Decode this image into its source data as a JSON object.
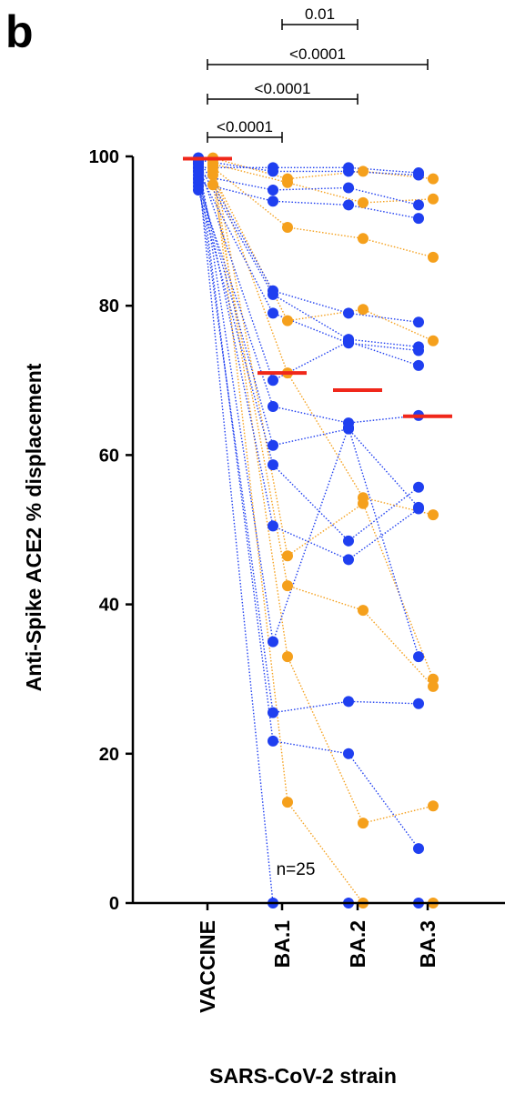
{
  "panel_label": "b",
  "chart_data": {
    "type": "scatter",
    "subtype": "paired-before-after",
    "title": "",
    "xlabel": "SARS-CoV-2 strain",
    "ylabel": "Anti-Spike ACE2 % displacement",
    "categories": [
      "VACCINE",
      "BA.1",
      "BA.2",
      "BA.3"
    ],
    "ylim": [
      0,
      100
    ],
    "yticks": [
      "0",
      "20",
      "40",
      "60",
      "80",
      "100"
    ],
    "grid": false,
    "n_label": "n=25",
    "colors": {
      "blue": "#1f3ff0",
      "orange": "#f5a01c",
      "median": "#f0271a"
    },
    "medians": [
      99.7,
      71.0,
      68.7,
      65.2
    ],
    "comparisons": [
      {
        "from": "VACCINE",
        "to": "BA.1",
        "p": "<0.0001"
      },
      {
        "from": "VACCINE",
        "to": "BA.2",
        "p": "<0.0001"
      },
      {
        "from": "VACCINE",
        "to": "BA.3",
        "p": "<0.0001"
      },
      {
        "from": "BA.1",
        "to": "BA.2",
        "p": "0.01"
      }
    ],
    "series": [
      {
        "group": "blue",
        "values": [
          98.5,
          98.5,
          98.5,
          97.8
        ]
      },
      {
        "group": "blue",
        "values": [
          99.5,
          98.0,
          98.0,
          97.5
        ]
      },
      {
        "group": "blue",
        "values": [
          97.5,
          95.5,
          95.8,
          93.5
        ]
      },
      {
        "group": "blue",
        "values": [
          96.5,
          94.0,
          93.5,
          91.7
        ]
      },
      {
        "group": "blue",
        "values": [
          99.8,
          82.0,
          79.0,
          77.8
        ]
      },
      {
        "group": "blue",
        "values": [
          99.0,
          81.5,
          75.5,
          74.5
        ]
      },
      {
        "group": "blue",
        "values": [
          98.0,
          79.0,
          75.0,
          74.0
        ]
      },
      {
        "group": "blue",
        "values": [
          99.0,
          70.0,
          75.2,
          72.0
        ]
      },
      {
        "group": "blue",
        "values": [
          96.0,
          66.5,
          64.3,
          65.3
        ]
      },
      {
        "group": "blue",
        "values": [
          97.0,
          61.3,
          63.5,
          53.0
        ]
      },
      {
        "group": "blue",
        "values": [
          95.5,
          58.7,
          48.5,
          55.7
        ]
      },
      {
        "group": "blue",
        "values": [
          98.5,
          50.5,
          46.0,
          52.8
        ]
      },
      {
        "group": "blue",
        "values": [
          99.8,
          35.0,
          63.7,
          33.0
        ]
      },
      {
        "group": "blue",
        "values": [
          97.0,
          25.5,
          27.0,
          26.7
        ]
      },
      {
        "group": "blue",
        "values": [
          99.3,
          21.7,
          20.0,
          7.3
        ]
      },
      {
        "group": "blue",
        "values": [
          98.0,
          0.0,
          0.0,
          0.0
        ]
      },
      {
        "group": "orange",
        "values": [
          99.8,
          97.0,
          98.0,
          97.0
        ]
      },
      {
        "group": "orange",
        "values": [
          99.0,
          96.5,
          93.8,
          94.3
        ]
      },
      {
        "group": "orange",
        "values": [
          98.5,
          90.5,
          89.0,
          86.5
        ]
      },
      {
        "group": "orange",
        "values": [
          97.5,
          78.0,
          79.5,
          75.3
        ]
      },
      {
        "group": "orange",
        "values": [
          98.0,
          71.0,
          54.3,
          52.0
        ]
      },
      {
        "group": "orange",
        "values": [
          99.5,
          46.5,
          53.5,
          30.0
        ]
      },
      {
        "group": "orange",
        "values": [
          96.2,
          42.5,
          39.2,
          29.0
        ]
      },
      {
        "group": "orange",
        "values": [
          98.8,
          33.0,
          10.7,
          13.0
        ]
      },
      {
        "group": "orange",
        "values": [
          99.0,
          13.5,
          0.0,
          0.0
        ]
      }
    ]
  }
}
